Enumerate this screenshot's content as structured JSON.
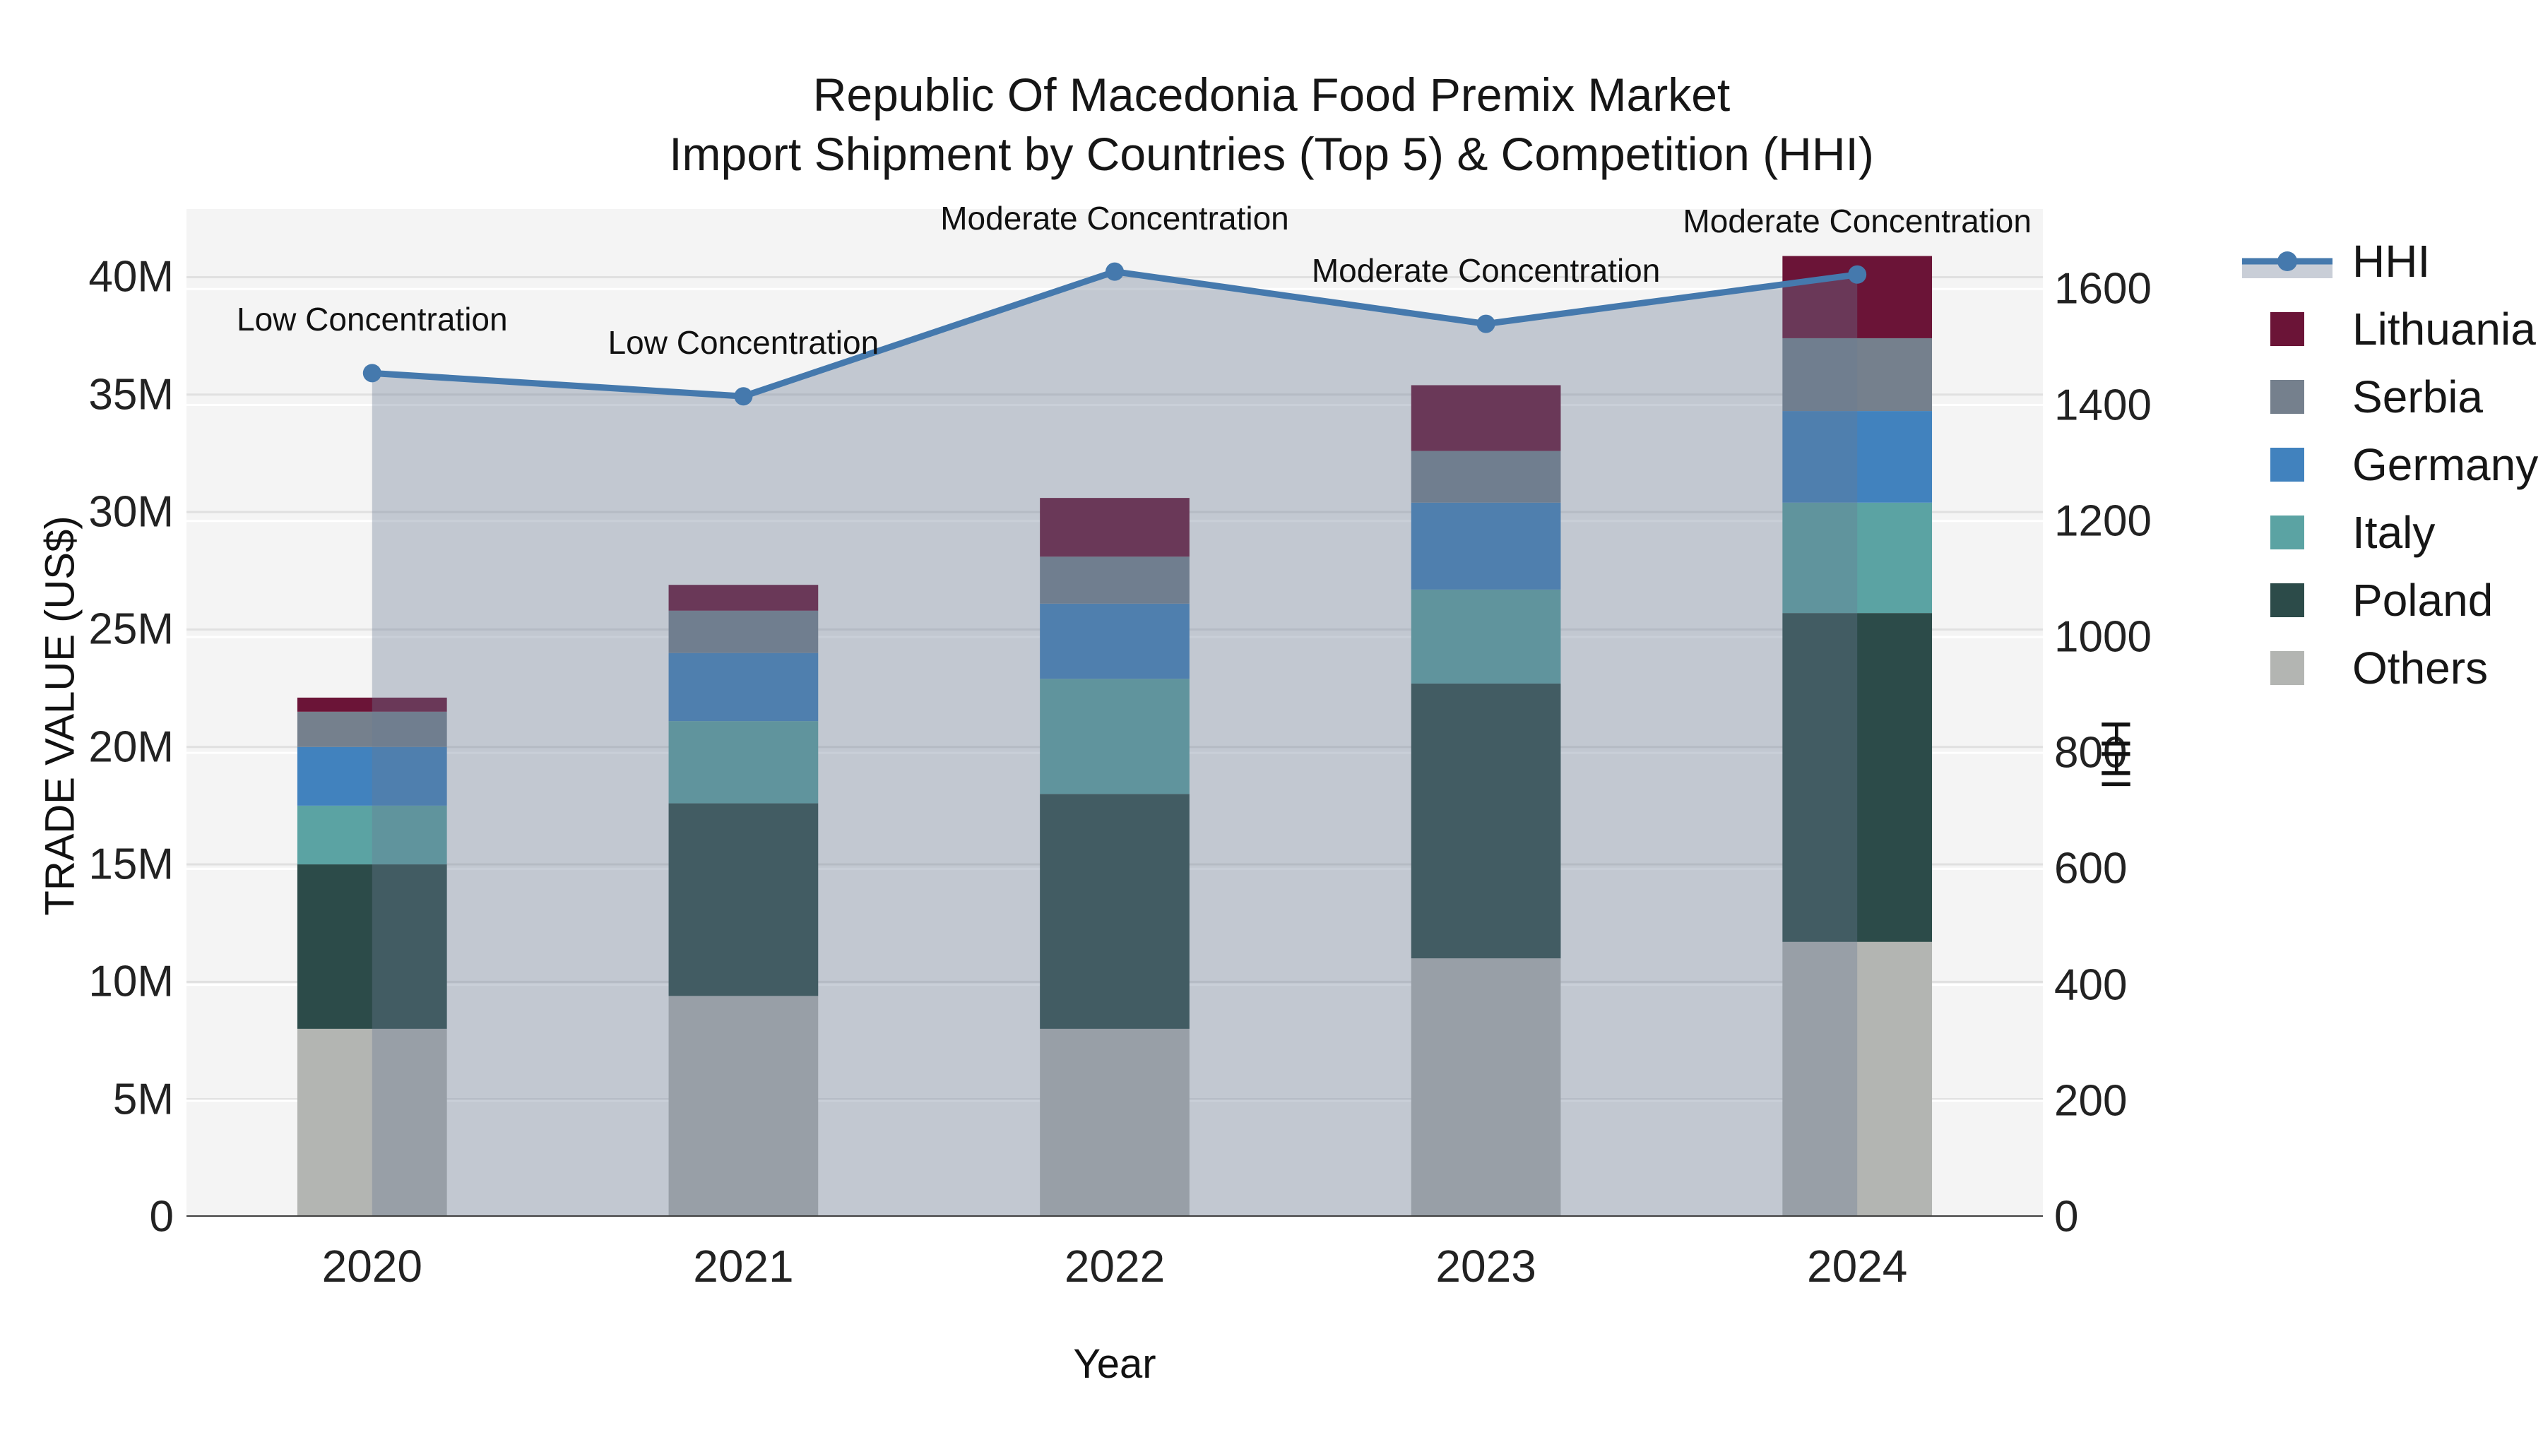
{
  "title": {
    "line1": "Republic Of Macedonia Food Premix Market",
    "line2": "Import Shipment by Countries (Top 5) & Competition (HHI)"
  },
  "chart_data": {
    "type": "bar",
    "subtype": "stacked-bars-with-line",
    "categories": [
      "2020",
      "2021",
      "2022",
      "2023",
      "2024"
    ],
    "series": [
      {
        "name": "Others",
        "color": "#b3b5b2",
        "values": [
          8.0,
          9.4,
          8.0,
          11.0,
          11.7
        ]
      },
      {
        "name": "Poland",
        "color": "#2c4b49",
        "values": [
          7.0,
          8.2,
          10.0,
          11.7,
          14.0
        ]
      },
      {
        "name": "Italy",
        "color": "#5ba3a3",
        "values": [
          2.5,
          3.5,
          4.9,
          4.0,
          4.7
        ]
      },
      {
        "name": "Germany",
        "color": "#4182be",
        "values": [
          2.5,
          2.9,
          3.2,
          3.7,
          3.9
        ]
      },
      {
        "name": "Serbia",
        "color": "#75808d",
        "values": [
          1.5,
          1.8,
          2.0,
          2.2,
          3.1
        ]
      },
      {
        "name": "Lithuania",
        "color": "#6b1437",
        "values": [
          0.6,
          1.1,
          2.5,
          2.8,
          3.5
        ]
      }
    ],
    "bar_totals_musd": [
      22.1,
      26.9,
      30.6,
      35.4,
      40.9
    ],
    "line_series": {
      "name": "HHI",
      "color": "#4579ad",
      "area_fill": "rgba(104,122,148,0.36)",
      "values": [
        1455,
        1415,
        1630,
        1540,
        1625
      ]
    },
    "annotations": [
      {
        "category_index": 0,
        "text": "Low Concentration"
      },
      {
        "category_index": 1,
        "text": "Low Concentration"
      },
      {
        "category_index": 2,
        "text": "Moderate Concentration"
      },
      {
        "category_index": 3,
        "text": "Moderate Concentration"
      },
      {
        "category_index": 4,
        "text": "Moderate Concentration"
      }
    ],
    "xlabel": "Year",
    "y1label": "TRADE VALUE (US$)",
    "y2label": "HHI",
    "y1_ticks": [
      {
        "v": 0,
        "label": "0"
      },
      {
        "v": 5,
        "label": "5M"
      },
      {
        "v": 10,
        "label": "10M"
      },
      {
        "v": 15,
        "label": "15M"
      },
      {
        "v": 20,
        "label": "20M"
      },
      {
        "v": 25,
        "label": "25M"
      },
      {
        "v": 30,
        "label": "30M"
      },
      {
        "v": 35,
        "label": "35M"
      },
      {
        "v": 40,
        "label": "40M"
      }
    ],
    "y2_ticks": [
      {
        "v": 0,
        "label": "0"
      },
      {
        "v": 200,
        "label": "200"
      },
      {
        "v": 400,
        "label": "400"
      },
      {
        "v": 600,
        "label": "600"
      },
      {
        "v": 800,
        "label": "800"
      },
      {
        "v": 1000,
        "label": "1000"
      },
      {
        "v": 1200,
        "label": "1200"
      },
      {
        "v": 1400,
        "label": "1400"
      },
      {
        "v": 1600,
        "label": "1600"
      }
    ],
    "y1_max": 42.9,
    "y2_max": 1738,
    "grid": true,
    "legend_position": "right",
    "legend_order": [
      "HHI",
      "Lithuania",
      "Serbia",
      "Germany",
      "Italy",
      "Poland",
      "Others"
    ]
  },
  "colors": {
    "plot_background": "#f4f4f4",
    "figure_background": "#ffffff",
    "grid_left_axis": "#e0e0e0",
    "grid_right_axis": "#ffffff",
    "axis_line": "#3f3f3f",
    "text": "#161616"
  }
}
